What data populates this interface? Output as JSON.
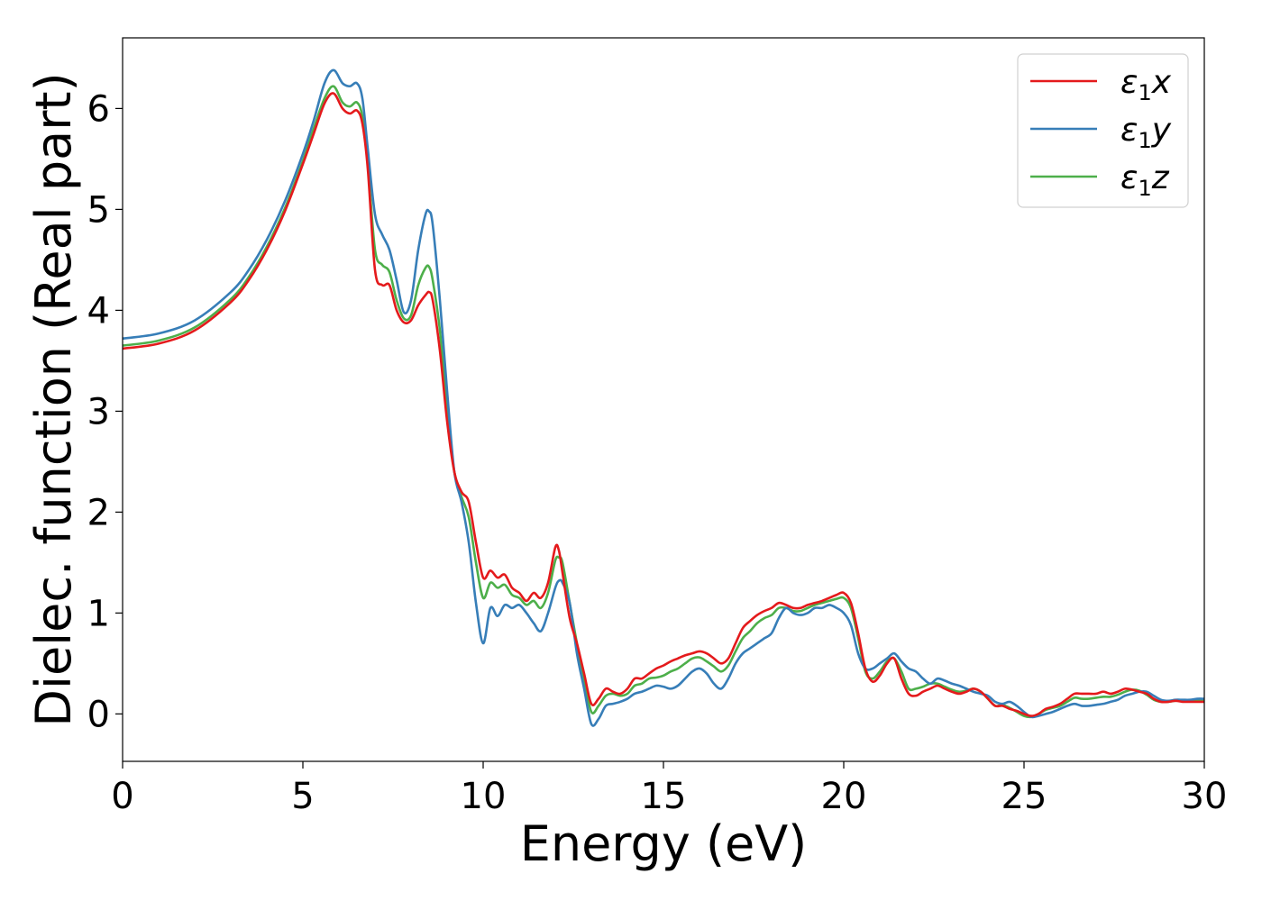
{
  "chart_data": {
    "type": "line",
    "xlabel": "Energy (eV)",
    "ylabel": "Dielec. function (Real part)",
    "xlim": [
      0,
      30
    ],
    "ylim": [
      -0.47,
      6.7
    ],
    "xticks": [
      0,
      5,
      10,
      15,
      20,
      25,
      30
    ],
    "yticks": [
      0,
      1,
      2,
      3,
      4,
      5,
      6
    ],
    "grid": false,
    "legend_position": "top-right",
    "series": [
      {
        "name": "ε1x",
        "legend": {
          "base": "ε",
          "sub": "1",
          "var": "x"
        },
        "color": "#e41a1c",
        "x": [
          0,
          1,
          2,
          3,
          3.5,
          4,
          4.5,
          5,
          5.3,
          5.6,
          5.85,
          6.1,
          6.3,
          6.5,
          6.65,
          6.8,
          7.0,
          7.2,
          7.4,
          7.6,
          7.8,
          8.0,
          8.2,
          8.4,
          8.5,
          8.6,
          8.8,
          9.0,
          9.2,
          9.4,
          9.6,
          9.8,
          10.0,
          10.2,
          10.4,
          10.6,
          10.8,
          11.0,
          11.2,
          11.4,
          11.6,
          11.8,
          12.0,
          12.1,
          12.2,
          12.4,
          12.6,
          12.8,
          13.0,
          13.2,
          13.4,
          13.6,
          13.8,
          14.0,
          14.2,
          14.4,
          14.6,
          14.8,
          15.0,
          15.2,
          15.4,
          15.6,
          15.8,
          16.0,
          16.2,
          16.4,
          16.6,
          16.8,
          17.0,
          17.2,
          17.4,
          17.6,
          17.8,
          18.0,
          18.2,
          18.4,
          18.6,
          18.8,
          19.0,
          19.2,
          19.4,
          19.6,
          19.8,
          20.0,
          20.2,
          20.4,
          20.6,
          20.8,
          21.0,
          21.2,
          21.4,
          21.6,
          21.8,
          22.0,
          22.2,
          22.4,
          22.6,
          22.8,
          23.0,
          23.2,
          23.4,
          23.6,
          23.8,
          24.0,
          24.2,
          24.4,
          24.6,
          24.8,
          25.0,
          25.2,
          25.4,
          25.6,
          25.8,
          26.0,
          26.2,
          26.4,
          26.6,
          26.8,
          27.0,
          27.2,
          27.4,
          27.6,
          27.8,
          28.0,
          28.2,
          28.4,
          28.6,
          28.8,
          29.0,
          29.2,
          29.4,
          29.6,
          29.8,
          30.0
        ],
        "y": [
          3.62,
          3.67,
          3.8,
          4.08,
          4.3,
          4.6,
          4.98,
          5.45,
          5.75,
          6.05,
          6.15,
          6.0,
          5.95,
          5.98,
          5.85,
          5.4,
          4.4,
          4.25,
          4.25,
          4.0,
          3.88,
          3.9,
          4.05,
          4.15,
          4.18,
          4.1,
          3.6,
          2.9,
          2.4,
          2.2,
          2.1,
          1.7,
          1.35,
          1.42,
          1.35,
          1.38,
          1.25,
          1.2,
          1.12,
          1.2,
          1.15,
          1.3,
          1.65,
          1.62,
          1.4,
          0.95,
          0.7,
          0.4,
          0.1,
          0.15,
          0.25,
          0.22,
          0.2,
          0.25,
          0.35,
          0.35,
          0.4,
          0.45,
          0.48,
          0.52,
          0.55,
          0.58,
          0.6,
          0.62,
          0.6,
          0.55,
          0.5,
          0.55,
          0.7,
          0.85,
          0.92,
          0.98,
          1.02,
          1.05,
          1.1,
          1.08,
          1.05,
          1.05,
          1.08,
          1.1,
          1.12,
          1.15,
          1.18,
          1.2,
          1.1,
          0.8,
          0.45,
          0.32,
          0.38,
          0.5,
          0.55,
          0.35,
          0.2,
          0.18,
          0.22,
          0.25,
          0.28,
          0.25,
          0.22,
          0.2,
          0.22,
          0.25,
          0.22,
          0.15,
          0.08,
          0.08,
          0.05,
          0.03,
          0.0,
          -0.02,
          0.0,
          0.05,
          0.07,
          0.1,
          0.15,
          0.2,
          0.2,
          0.2,
          0.2,
          0.22,
          0.2,
          0.22,
          0.25,
          0.24,
          0.22,
          0.2,
          0.15,
          0.12,
          0.12,
          0.13,
          0.12,
          0.12,
          0.12,
          0.12
        ]
      },
      {
        "name": "ε1y",
        "legend": {
          "base": "ε",
          "sub": "1",
          "var": "y"
        },
        "color": "#377eb8",
        "x": [
          0,
          1,
          2,
          3,
          3.5,
          4,
          4.5,
          5,
          5.3,
          5.6,
          5.85,
          6.1,
          6.3,
          6.5,
          6.65,
          6.8,
          7.0,
          7.2,
          7.4,
          7.6,
          7.8,
          8.0,
          8.2,
          8.4,
          8.5,
          8.6,
          8.8,
          9.0,
          9.2,
          9.4,
          9.6,
          9.8,
          10.0,
          10.2,
          10.4,
          10.6,
          10.8,
          11.0,
          11.2,
          11.4,
          11.6,
          11.8,
          12.0,
          12.1,
          12.2,
          12.4,
          12.6,
          12.8,
          13.0,
          13.2,
          13.4,
          13.6,
          13.8,
          14.0,
          14.2,
          14.4,
          14.6,
          14.8,
          15.0,
          15.2,
          15.4,
          15.6,
          15.8,
          16.0,
          16.2,
          16.4,
          16.6,
          16.8,
          17.0,
          17.2,
          17.4,
          17.6,
          17.8,
          18.0,
          18.2,
          18.4,
          18.6,
          18.8,
          19.0,
          19.2,
          19.4,
          19.6,
          19.8,
          20.0,
          20.2,
          20.4,
          20.6,
          20.8,
          21.0,
          21.2,
          21.4,
          21.6,
          21.8,
          22.0,
          22.2,
          22.4,
          22.6,
          22.8,
          23.0,
          23.2,
          23.4,
          23.6,
          23.8,
          24.0,
          24.2,
          24.4,
          24.6,
          24.8,
          25.0,
          25.2,
          25.4,
          25.6,
          25.8,
          26.0,
          26.2,
          26.4,
          26.6,
          26.8,
          27.0,
          27.2,
          27.4,
          27.6,
          27.8,
          28.0,
          28.2,
          28.4,
          28.6,
          28.8,
          29.0,
          29.2,
          29.4,
          29.6,
          29.8,
          30.0
        ],
        "y": [
          3.72,
          3.77,
          3.9,
          4.18,
          4.4,
          4.7,
          5.08,
          5.55,
          5.88,
          6.25,
          6.38,
          6.25,
          6.22,
          6.25,
          6.1,
          5.6,
          4.95,
          4.75,
          4.6,
          4.3,
          3.98,
          4.1,
          4.6,
          4.95,
          4.98,
          4.85,
          4.1,
          3.2,
          2.4,
          2.1,
          1.7,
          1.1,
          0.7,
          1.05,
          0.97,
          1.08,
          1.05,
          1.08,
          1.0,
          0.9,
          0.82,
          1.0,
          1.25,
          1.32,
          1.3,
          1.1,
          0.6,
          0.25,
          -0.1,
          -0.05,
          0.08,
          0.1,
          0.12,
          0.15,
          0.2,
          0.22,
          0.25,
          0.28,
          0.27,
          0.25,
          0.28,
          0.35,
          0.42,
          0.45,
          0.4,
          0.3,
          0.25,
          0.35,
          0.5,
          0.6,
          0.65,
          0.7,
          0.75,
          0.8,
          0.95,
          1.05,
          1.0,
          0.98,
          1.0,
          1.05,
          1.05,
          1.08,
          1.05,
          1.0,
          0.88,
          0.6,
          0.45,
          0.45,
          0.5,
          0.55,
          0.6,
          0.52,
          0.45,
          0.42,
          0.35,
          0.3,
          0.35,
          0.33,
          0.3,
          0.28,
          0.25,
          0.22,
          0.2,
          0.18,
          0.12,
          0.1,
          0.12,
          0.08,
          0.02,
          -0.03,
          -0.02,
          0.0,
          0.02,
          0.05,
          0.08,
          0.1,
          0.08,
          0.08,
          0.09,
          0.1,
          0.12,
          0.14,
          0.18,
          0.2,
          0.22,
          0.22,
          0.18,
          0.14,
          0.13,
          0.14,
          0.14,
          0.14,
          0.15,
          0.15
        ]
      },
      {
        "name": "ε1z",
        "legend": {
          "base": "ε",
          "sub": "1",
          "var": "z"
        },
        "color": "#4daf4a",
        "x": [
          0,
          1,
          2,
          3,
          3.5,
          4,
          4.5,
          5,
          5.3,
          5.6,
          5.85,
          6.1,
          6.3,
          6.5,
          6.65,
          6.8,
          7.0,
          7.2,
          7.4,
          7.6,
          7.8,
          8.0,
          8.2,
          8.4,
          8.5,
          8.6,
          8.8,
          9.0,
          9.2,
          9.4,
          9.6,
          9.8,
          10.0,
          10.2,
          10.4,
          10.6,
          10.8,
          11.0,
          11.2,
          11.4,
          11.6,
          11.8,
          12.0,
          12.1,
          12.2,
          12.4,
          12.6,
          12.8,
          13.0,
          13.2,
          13.4,
          13.6,
          13.8,
          14.0,
          14.2,
          14.4,
          14.6,
          14.8,
          15.0,
          15.2,
          15.4,
          15.6,
          15.8,
          16.0,
          16.2,
          16.4,
          16.6,
          16.8,
          17.0,
          17.2,
          17.4,
          17.6,
          17.8,
          18.0,
          18.2,
          18.4,
          18.6,
          18.8,
          19.0,
          19.2,
          19.4,
          19.6,
          19.8,
          20.0,
          20.2,
          20.4,
          20.6,
          20.8,
          21.0,
          21.2,
          21.4,
          21.6,
          21.8,
          22.0,
          22.2,
          22.4,
          22.6,
          22.8,
          23.0,
          23.2,
          23.4,
          23.6,
          23.8,
          24.0,
          24.2,
          24.4,
          24.6,
          24.8,
          25.0,
          25.2,
          25.4,
          25.6,
          25.8,
          26.0,
          26.2,
          26.4,
          26.6,
          26.8,
          27.0,
          27.2,
          27.4,
          27.6,
          27.8,
          28.0,
          28.2,
          28.4,
          28.6,
          28.8,
          29.0,
          29.2,
          29.4,
          29.6,
          29.8,
          30.0
        ],
        "y": [
          3.65,
          3.7,
          3.83,
          4.11,
          4.33,
          4.63,
          5.01,
          5.48,
          5.8,
          6.1,
          6.22,
          6.06,
          6.02,
          6.06,
          5.92,
          5.45,
          4.6,
          4.45,
          4.38,
          4.1,
          3.92,
          3.95,
          4.25,
          4.42,
          4.43,
          4.3,
          3.8,
          3.0,
          2.4,
          2.15,
          1.95,
          1.5,
          1.15,
          1.3,
          1.25,
          1.28,
          1.18,
          1.15,
          1.08,
          1.12,
          1.05,
          1.2,
          1.52,
          1.55,
          1.5,
          1.1,
          0.7,
          0.35,
          0.02,
          0.08,
          0.18,
          0.2,
          0.18,
          0.2,
          0.28,
          0.3,
          0.35,
          0.36,
          0.38,
          0.42,
          0.45,
          0.5,
          0.55,
          0.56,
          0.52,
          0.47,
          0.42,
          0.48,
          0.62,
          0.75,
          0.82,
          0.9,
          0.95,
          0.98,
          1.05,
          1.05,
          1.02,
          1.02,
          1.05,
          1.08,
          1.1,
          1.12,
          1.14,
          1.15,
          1.05,
          0.75,
          0.42,
          0.35,
          0.42,
          0.52,
          0.55,
          0.42,
          0.25,
          0.25,
          0.27,
          0.3,
          0.3,
          0.27,
          0.24,
          0.22,
          0.23,
          0.25,
          0.22,
          0.15,
          0.08,
          0.09,
          0.06,
          0.02,
          -0.02,
          -0.03,
          0.0,
          0.04,
          0.06,
          0.08,
          0.12,
          0.16,
          0.15,
          0.15,
          0.16,
          0.17,
          0.17,
          0.19,
          0.22,
          0.24,
          0.23,
          0.19,
          0.14,
          0.12,
          0.12,
          0.13,
          0.13,
          0.13,
          0.13,
          0.13
        ]
      }
    ]
  }
}
